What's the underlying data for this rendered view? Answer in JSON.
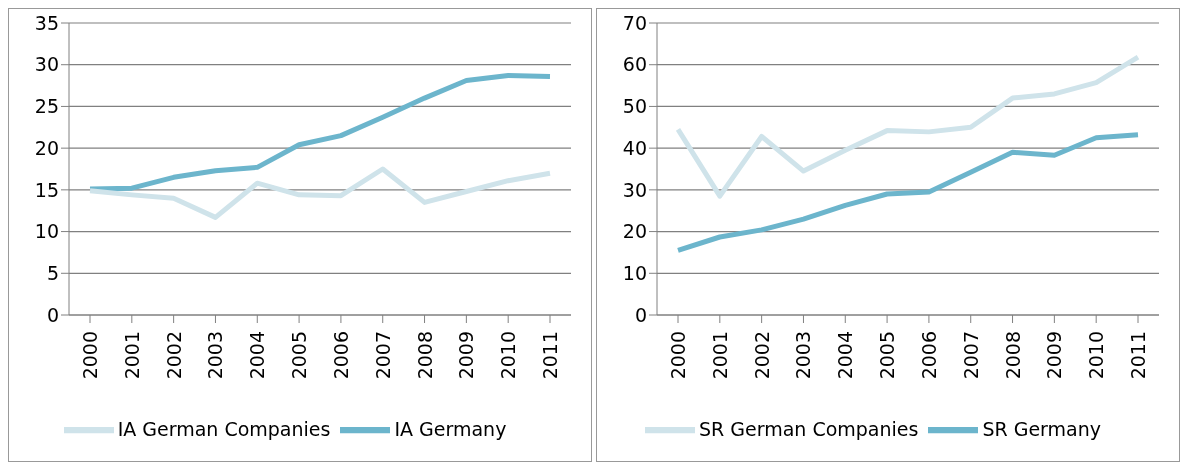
{
  "chart_data": [
    {
      "type": "line",
      "categories": [
        "2000",
        "2001",
        "2002",
        "2003",
        "2004",
        "2005",
        "2006",
        "2007",
        "2008",
        "2009",
        "2010",
        "2011"
      ],
      "ylim": [
        0,
        35
      ],
      "yticks": [
        0,
        5,
        10,
        15,
        20,
        25,
        30,
        35
      ],
      "grid": "y",
      "legend": "bottom",
      "marker": "none",
      "line_style": "solid",
      "series": [
        {
          "name": "IA Germany",
          "color": "#6cb5cc",
          "values": [
            15.1,
            15.2,
            16.5,
            17.3,
            17.7,
            20.4,
            21.5,
            23.7,
            26.0,
            28.1,
            28.7,
            28.6
          ]
        },
        {
          "name": "IA German Companies",
          "color": "#cfe3ea",
          "values": [
            14.9,
            14.4,
            14.0,
            11.7,
            15.8,
            14.4,
            14.3,
            17.5,
            13.5,
            14.8,
            16.1,
            17.0
          ]
        }
      ]
    },
    {
      "type": "line",
      "categories": [
        "2000",
        "2001",
        "2002",
        "2003",
        "2004",
        "2005",
        "2006",
        "2007",
        "2008",
        "2009",
        "2010",
        "2011"
      ],
      "ylim": [
        0,
        70
      ],
      "yticks": [
        0,
        10,
        20,
        30,
        40,
        50,
        60,
        70
      ],
      "grid": "y",
      "legend": "bottom",
      "marker": "none",
      "line_style": "solid",
      "series": [
        {
          "name": "SR Germany",
          "color": "#6cb5cc",
          "values": [
            15.5,
            18.7,
            20.4,
            23.0,
            26.3,
            29.0,
            29.5,
            34.2,
            39.0,
            38.3,
            42.5,
            43.2
          ]
        },
        {
          "name": "SR German Companies",
          "color": "#cfe3ea",
          "values": [
            44.5,
            28.5,
            42.8,
            34.5,
            39.5,
            44.2,
            43.9,
            45.0,
            52.0,
            53.0,
            55.7,
            61.8
          ]
        }
      ]
    }
  ]
}
